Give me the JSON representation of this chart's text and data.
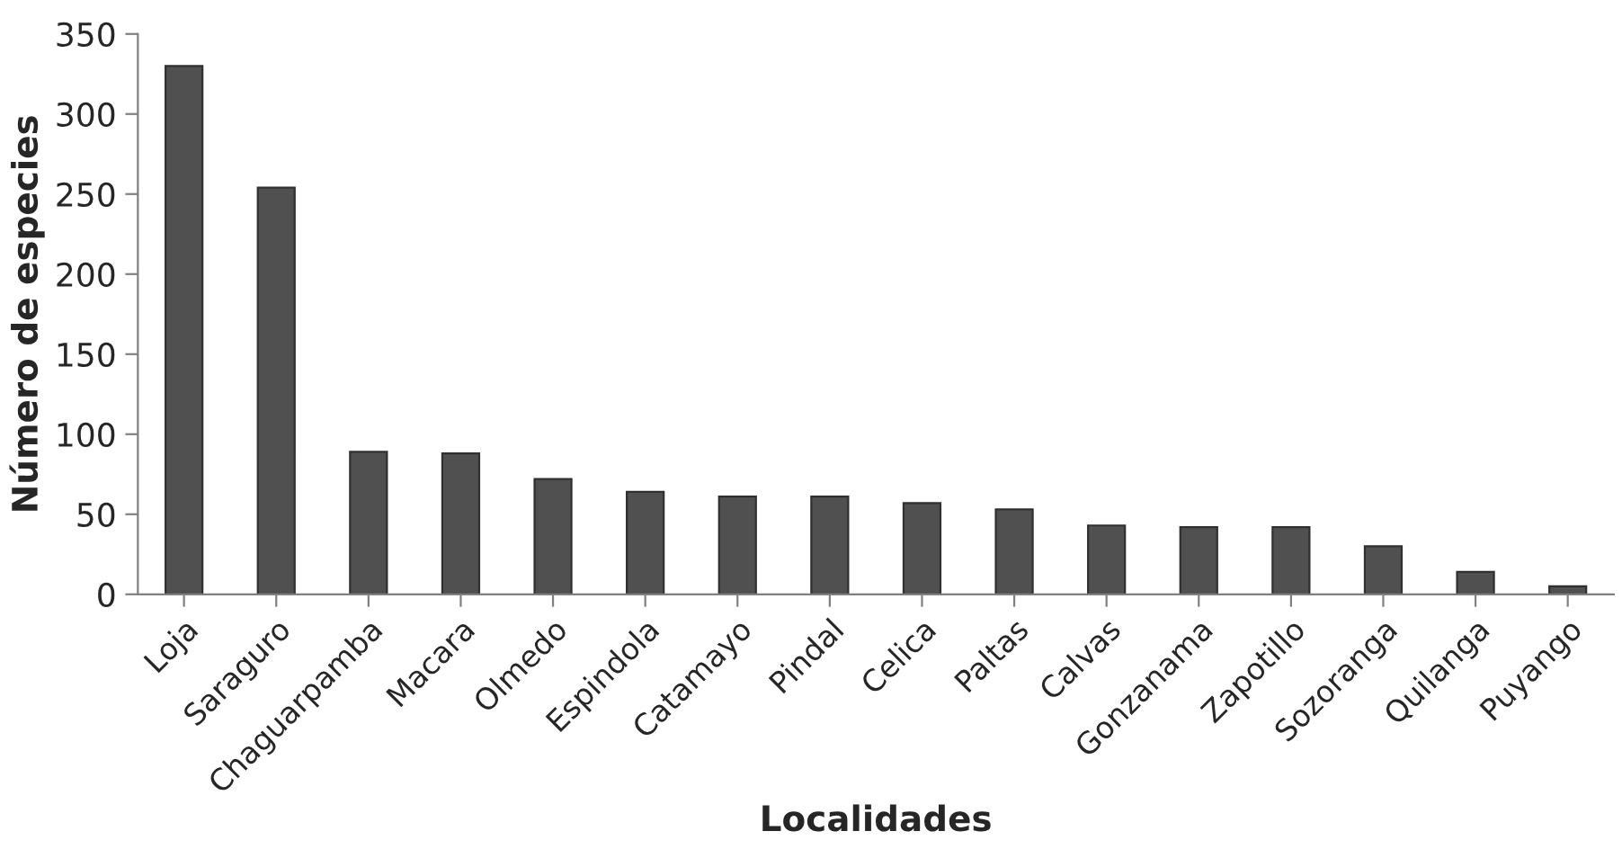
{
  "chart_data": {
    "type": "bar",
    "categories": [
      "Loja",
      "Saraguro",
      "Chaguarpamba",
      "Macara",
      "Olmedo",
      "Espindola",
      "Catamayo",
      "Pindal",
      "Celica",
      "Paltas",
      "Calvas",
      "Gonzanama",
      "Zapotillo",
      "Sozoranga",
      "Quilanga",
      "Puyango"
    ],
    "values": [
      330,
      254,
      89,
      88,
      72,
      64,
      61,
      61,
      57,
      53,
      43,
      42,
      42,
      30,
      14,
      5
    ],
    "color": "#505050",
    "xlabel": "Localidades",
    "ylabel": "Número de especies",
    "ylim": [
      0,
      350
    ],
    "yticks": [
      0,
      50,
      100,
      150,
      200,
      250,
      300,
      350
    ],
    "grid": false
  }
}
